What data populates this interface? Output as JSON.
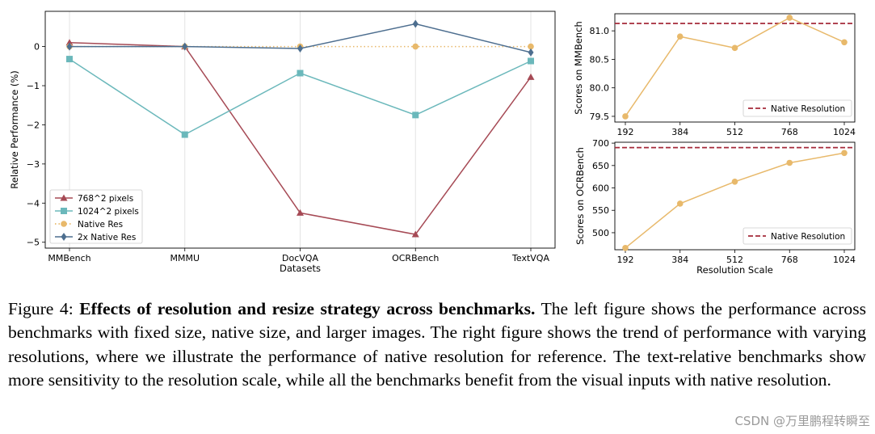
{
  "chart_data": [
    {
      "type": "line",
      "xlabel": "Datasets",
      "ylabel": "Relative Performance (%)",
      "categories": [
        "MMBench",
        "MMMU",
        "DocVQA",
        "OCRBench",
        "TextVQA"
      ],
      "ylim": [
        -5.15,
        0.9
      ],
      "yticks": [
        0,
        -1,
        -2,
        -3,
        -4,
        -5
      ],
      "ytick_labels": [
        "0",
        "−1",
        "−2",
        "−3",
        "−4",
        "−5"
      ],
      "grid": "vertical",
      "legend_position": "lower-left",
      "series": [
        {
          "name": "768^2 pixels",
          "values": [
            0.1,
            0.0,
            -4.25,
            -4.8,
            -0.78
          ],
          "color": "#a64a55",
          "marker": "triangle"
        },
        {
          "name": "1024^2 pixels",
          "values": [
            -0.32,
            -2.25,
            -0.68,
            -1.75,
            -0.37
          ],
          "color": "#6bb8bb",
          "marker": "square"
        },
        {
          "name": "Native Res",
          "values": [
            0.0,
            0.0,
            0.0,
            0.0,
            0.0
          ],
          "color": "#e8b96b",
          "marker": "circle",
          "style": "dotted"
        },
        {
          "name": "2x Native Res",
          "values": [
            0.0,
            0.0,
            -0.05,
            0.58,
            -0.15
          ],
          "color": "#4d6e8f",
          "marker": "diamond"
        }
      ]
    },
    {
      "type": "line",
      "ylabel": "Scores on MMBench",
      "categories": [
        "192",
        "384",
        "512",
        "768",
        "1024"
      ],
      "ylim": [
        79.4,
        81.3
      ],
      "yticks": [
        79.5,
        80.0,
        80.5,
        81.0
      ],
      "ytick_labels": [
        "79.5",
        "80.0",
        "80.5",
        "81.0"
      ],
      "legend_position": "lower-right",
      "reference": {
        "name": "Native Resolution",
        "value": 81.13,
        "color": "#a52a3a"
      },
      "series": [
        {
          "values": [
            79.5,
            80.9,
            80.7,
            81.23,
            80.8
          ],
          "color": "#e8b96b"
        }
      ]
    },
    {
      "type": "line",
      "xlabel": "Resolution Scale",
      "ylabel": "Scores on OCRBench",
      "categories": [
        "192",
        "384",
        "512",
        "768",
        "1024"
      ],
      "ylim": [
        462,
        702
      ],
      "yticks": [
        500,
        550,
        600,
        650,
        700
      ],
      "ytick_labels": [
        "500",
        "550",
        "600",
        "650",
        "700"
      ],
      "legend_position": "lower-right",
      "reference": {
        "name": "Native Resolution",
        "value": 690,
        "color": "#a52a3a"
      },
      "series": [
        {
          "values": [
            466,
            565,
            614,
            656,
            678
          ],
          "color": "#e8b96b"
        }
      ]
    }
  ],
  "caption": {
    "label": "Figure 4:",
    "title": "Effects of resolution and resize strategy across benchmarks.",
    "body": "The left figure shows the performance across benchmarks with fixed size, native size, and larger images. The right figure shows the trend of performance with varying resolutions, where we illustrate the performance of native resolution for reference. The text-relative benchmarks show more sensitivity to the resolution scale, while all the benchmarks benefit from the visual inputs with native resolution."
  },
  "watermark": "CSDN @万里鹏程转瞬至"
}
